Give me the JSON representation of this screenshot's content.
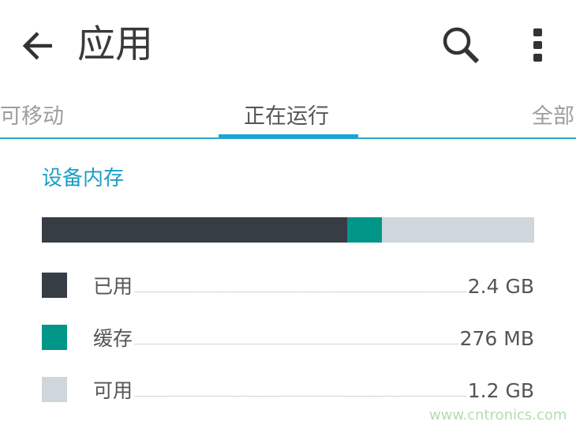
{
  "header": {
    "title": "应用",
    "back_icon": "arrow-left-icon",
    "search_icon": "search-icon",
    "menu_icon": "more-vert-icon"
  },
  "tabs": [
    {
      "label": "可移动"
    },
    {
      "label": "正在运行",
      "active": true
    },
    {
      "label": "全部"
    }
  ],
  "section_title": "设备内存",
  "memory_bar": {
    "used_fraction": 0.62,
    "cached_fraction": 0.07,
    "free_fraction": 0.31
  },
  "legend": [
    {
      "label": "已用",
      "value": "2.4 GB",
      "color": "#373d45"
    },
    {
      "label": "缓存",
      "value": "276 MB",
      "color": "#009688"
    },
    {
      "label": "可用",
      "value": "1.2 GB",
      "color": "#cfd6dc"
    }
  ],
  "accent_color": "#1aa3d6",
  "watermark": "www.cntronics.com"
}
